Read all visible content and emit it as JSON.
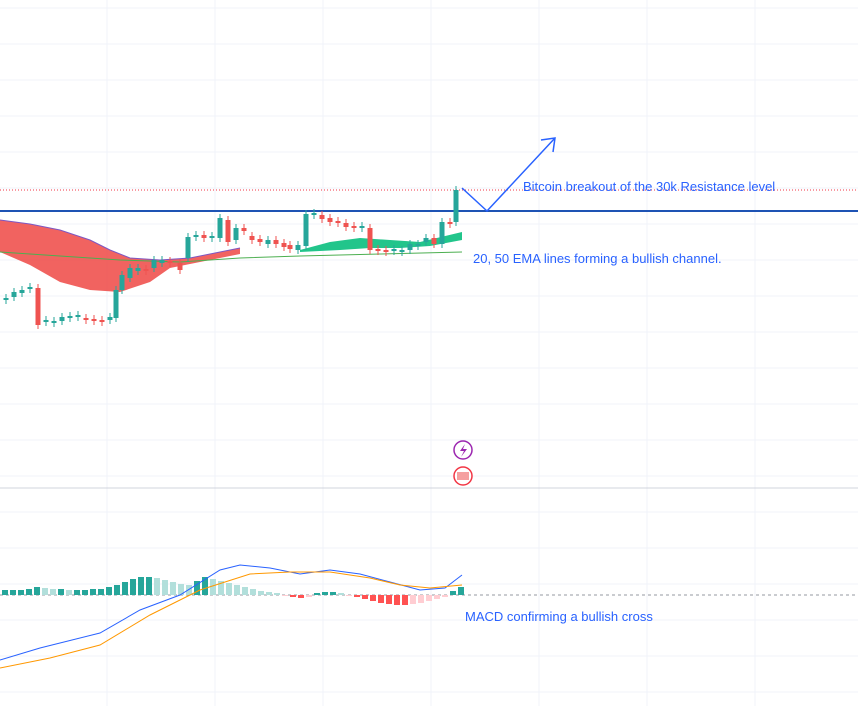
{
  "annotations": {
    "breakout": "Bitcoin breakout of the 30k Resistance level",
    "ema": "20, 50 EMA lines forming a bullish channel.",
    "macd": "MACD confirming a bullish cross"
  }
}
